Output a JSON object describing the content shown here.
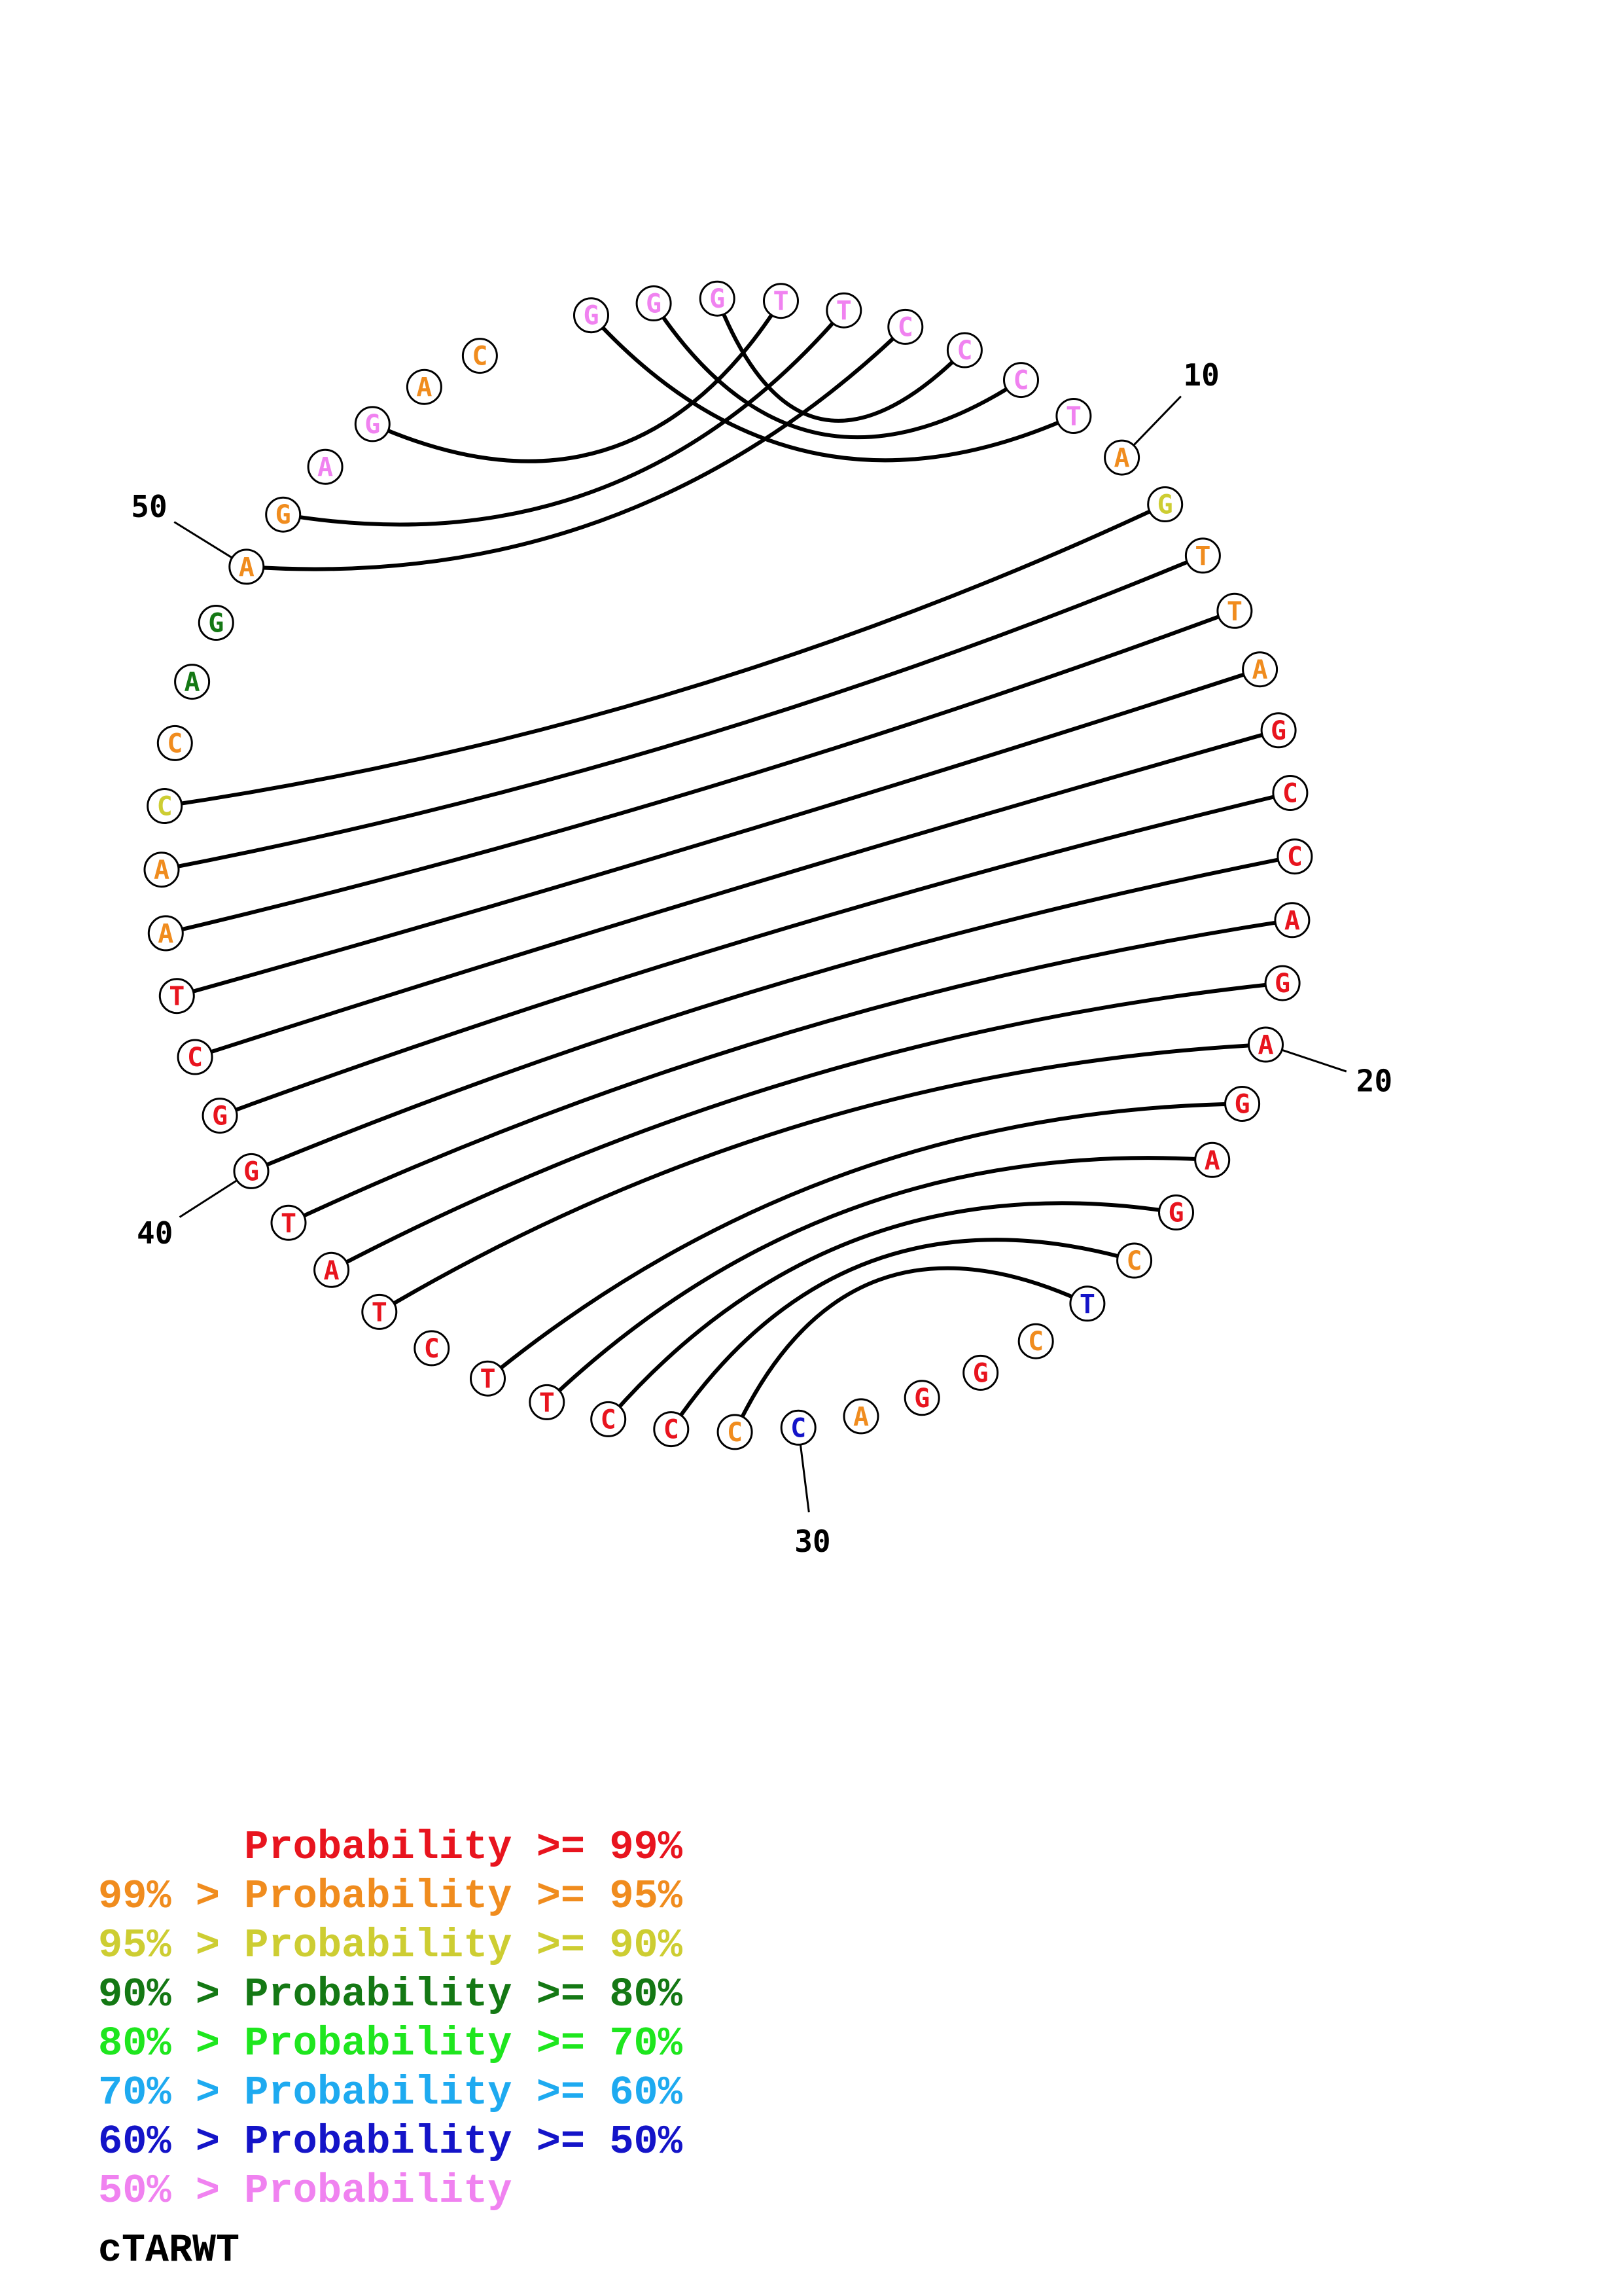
{
  "structure": {
    "sequence": [
      "G",
      "G",
      "G",
      "T",
      "T",
      "C",
      "C",
      "C",
      "T",
      "A",
      "G",
      "T",
      "T",
      "A",
      "G",
      "C",
      "C",
      "A",
      "G",
      "A",
      "G",
      "A",
      "G",
      "C",
      "T",
      "C",
      "G",
      "G",
      "A",
      "C",
      "C",
      "C",
      "C",
      "T",
      "T",
      "C",
      "T",
      "A",
      "T",
      "G",
      "G",
      "C",
      "T",
      "A",
      "A",
      "C",
      "C",
      "A",
      "G",
      "A",
      "G",
      "A",
      "G",
      "A",
      "C"
    ],
    "confidence": [
      "p",
      "p",
      "p",
      "p",
      "p",
      "p",
      "p",
      "p",
      "p",
      "o",
      "y",
      "o",
      "o",
      "o",
      "r",
      "r",
      "r",
      "r",
      "r",
      "r",
      "r",
      "r",
      "r",
      "o",
      "b",
      "o",
      "r",
      "r",
      "o",
      "b",
      "o",
      "r",
      "r",
      "r",
      "r",
      "r",
      "r",
      "r",
      "r",
      "r",
      "r",
      "r",
      "r",
      "o",
      "o",
      "y",
      "o",
      "g",
      "g",
      "o",
      "o",
      "p",
      "p",
      "o",
      "o"
    ],
    "pairs": [
      [
        1,
        9
      ],
      [
        2,
        8
      ],
      [
        3,
        7
      ],
      [
        4,
        53
      ],
      [
        5,
        51
      ],
      [
        6,
        50
      ],
      [
        11,
        46
      ],
      [
        12,
        45
      ],
      [
        13,
        44
      ],
      [
        14,
        43
      ],
      [
        15,
        42
      ],
      [
        16,
        41
      ],
      [
        17,
        40
      ],
      [
        18,
        39
      ],
      [
        19,
        38
      ],
      [
        20,
        37
      ],
      [
        21,
        35
      ],
      [
        22,
        34
      ],
      [
        23,
        33
      ],
      [
        24,
        32
      ],
      [
        25,
        31
      ]
    ],
    "position_labels": [
      {
        "index": 10,
        "text": "10"
      },
      {
        "index": 20,
        "text": "20"
      },
      {
        "index": 30,
        "text": "30"
      },
      {
        "index": 40,
        "text": "40"
      },
      {
        "index": 50,
        "text": "50"
      }
    ]
  },
  "legend": [
    {
      "prefix": "",
      "label": "Probability",
      "threshold": ">= 99%",
      "color": "#e8141e"
    },
    {
      "prefix": "99% >",
      "label": "Probability",
      "threshold": ">= 95%",
      "color": "#f08c1e"
    },
    {
      "prefix": "95% >",
      "label": "Probability",
      "threshold": ">= 90%",
      "color": "#cdcd32"
    },
    {
      "prefix": "90% >",
      "label": "Probability",
      "threshold": ">= 80%",
      "color": "#147814"
    },
    {
      "prefix": "80% >",
      "label": "Probability",
      "threshold": ">= 70%",
      "color": "#1ee61e"
    },
    {
      "prefix": "70% >",
      "label": "Probability",
      "threshold": ">= 60%",
      "color": "#1eaaf0"
    },
    {
      "prefix": "60% >",
      "label": "Probability",
      "threshold": ">= 50%",
      "color": "#1414c8"
    },
    {
      "prefix": "50% >",
      "label": "Probability",
      "threshold": "",
      "color": "#f082f0"
    }
  ],
  "confidence_colors": {
    "r": "#e8141e",
    "o": "#f08c1e",
    "y": "#cdcd32",
    "g": "#147814",
    "b": "#1414c8",
    "p": "#f082f0"
  },
  "title": "cTARWT"
}
